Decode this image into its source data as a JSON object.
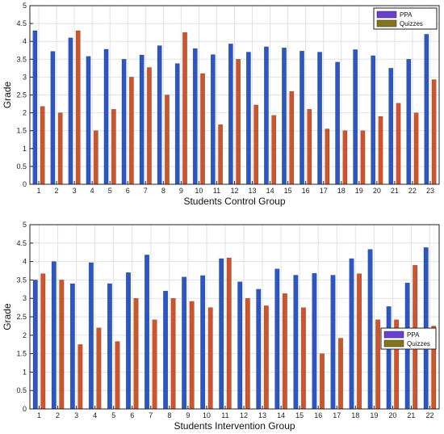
{
  "colors": {
    "ppa": "#2a56c6",
    "quizzes": "#d0542a",
    "grid": "#e2e2e2",
    "legend_ppa": "#6a40d0",
    "legend_quizzes": "#85741e"
  },
  "chart_data": [
    {
      "type": "bar",
      "xlabel": "Students Control Group",
      "ylabel": "Grade",
      "ylim": [
        0,
        5
      ],
      "yticks": [
        0,
        0.5,
        1,
        1.5,
        2,
        2.5,
        3,
        3.5,
        4,
        4.5,
        5
      ],
      "grid": true,
      "legend_position": "top-right",
      "categories": [
        "1",
        "2",
        "3",
        "4",
        "5",
        "6",
        "7",
        "8",
        "9",
        "10",
        "11",
        "12",
        "13",
        "14",
        "15",
        "16",
        "17",
        "18",
        "19",
        "20",
        "21",
        "22",
        "23"
      ],
      "series": [
        {
          "name": "PPA",
          "values": [
            4.3,
            3.72,
            4.1,
            3.58,
            3.78,
            3.5,
            3.62,
            3.88,
            3.38,
            3.8,
            3.63,
            3.93,
            3.7,
            3.85,
            3.82,
            3.73,
            3.7,
            3.42,
            3.77,
            3.6,
            3.25,
            3.5,
            4.2
          ]
        },
        {
          "name": "Quizzes",
          "values": [
            2.18,
            2.0,
            4.3,
            1.5,
            2.1,
            3.0,
            3.27,
            2.5,
            4.25,
            3.1,
            1.67,
            3.5,
            2.22,
            1.93,
            2.6,
            2.1,
            1.55,
            1.5,
            1.5,
            1.9,
            2.27,
            2.0,
            2.93
          ]
        }
      ]
    },
    {
      "type": "bar",
      "xlabel": "Students Intervention Group",
      "ylabel": "Grade",
      "ylim": [
        0,
        5
      ],
      "yticks": [
        0,
        0.5,
        1,
        1.5,
        2,
        2.5,
        3,
        3.5,
        4,
        4.5,
        5
      ],
      "grid": true,
      "legend_position": "right",
      "categories": [
        "1",
        "2",
        "3",
        "4",
        "5",
        "6",
        "7",
        "8",
        "9",
        "10",
        "11",
        "12",
        "13",
        "14",
        "15",
        "16",
        "17",
        "18",
        "19",
        "20",
        "21",
        "22"
      ],
      "series": [
        {
          "name": "PPA",
          "values": [
            3.5,
            4.0,
            3.4,
            3.97,
            3.4,
            3.7,
            4.18,
            3.2,
            3.58,
            3.62,
            4.08,
            3.45,
            3.25,
            3.8,
            3.63,
            3.68,
            3.63,
            4.08,
            4.33,
            2.78,
            3.42,
            4.38
          ]
        },
        {
          "name": "Quizzes",
          "values": [
            3.67,
            3.5,
            1.75,
            2.2,
            1.83,
            3.0,
            2.42,
            3.0,
            2.92,
            2.75,
            4.1,
            3.0,
            2.8,
            3.13,
            2.75,
            1.5,
            1.92,
            3.67,
            2.42,
            2.42,
            3.9,
            2.25
          ]
        }
      ]
    }
  ]
}
